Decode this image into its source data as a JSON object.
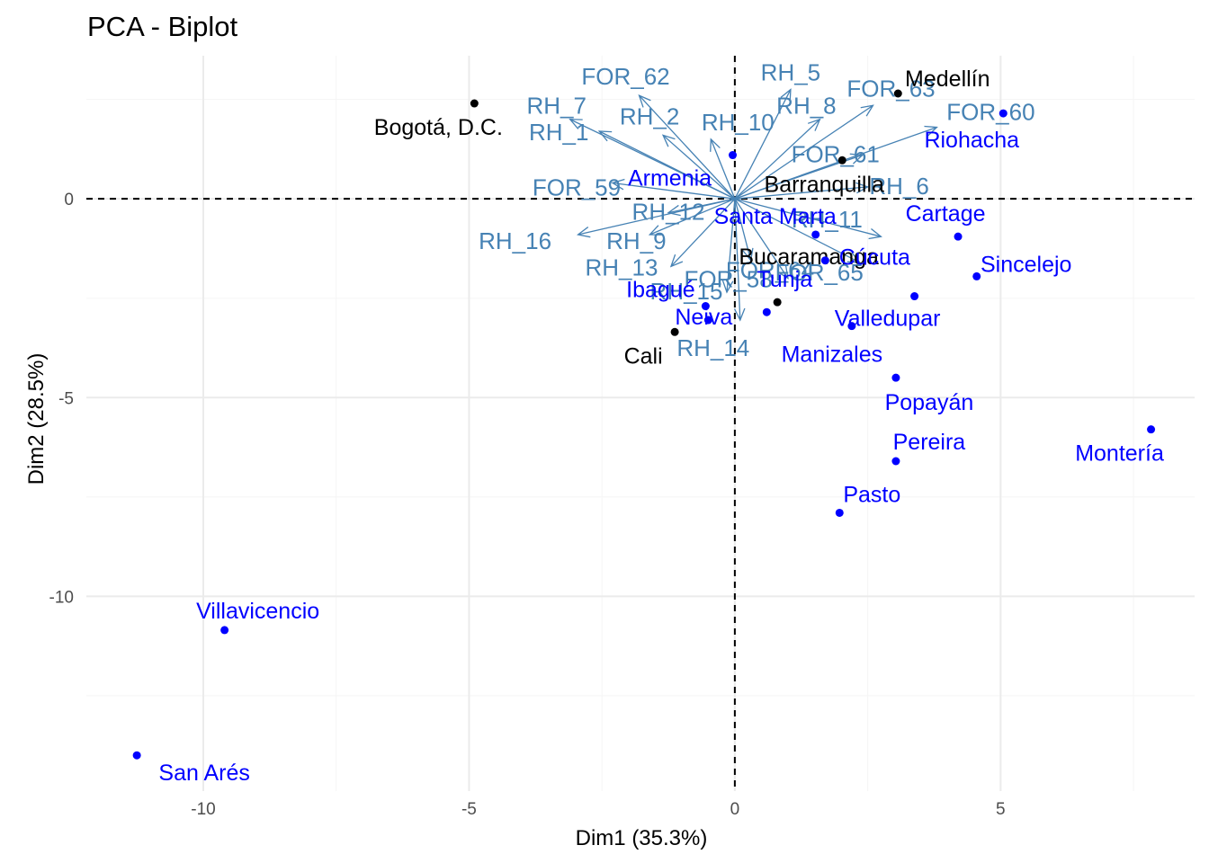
{
  "chart_data": {
    "type": "scatter",
    "title": "PCA - Biplot",
    "xlabel": "Dim1 (35.3%)",
    "ylabel": "Dim2 (28.5%)",
    "xlim": [
      -12.2,
      8.65
    ],
    "ylim": [
      -14.9,
      3.6
    ],
    "x_ticks": [
      -10,
      -5,
      0,
      5
    ],
    "x_tick_labels": [
      "-10",
      "-5",
      "0",
      "5"
    ],
    "y_ticks": [
      -10,
      -5,
      0
    ],
    "y_tick_labels": [
      "-10",
      "-5",
      "0"
    ],
    "grid": true,
    "zero_lines": true,
    "colors": {
      "variables": "#4682b4",
      "individuals_highlight": "#0000ff",
      "individuals_default": "#000000"
    },
    "individuals": [
      {
        "label": "Bogotá, D.C.",
        "x": -4.9,
        "y": 2.4,
        "color": "#000000"
      },
      {
        "label": "Medellín",
        "x": 3.07,
        "y": 2.65,
        "color": "#000000"
      },
      {
        "label": "Barranquilla",
        "x": 2.02,
        "y": 0.97,
        "color": "#000000"
      },
      {
        "label": "Bucaramanga",
        "x": 0.8,
        "y": -2.6,
        "color": "#000000"
      },
      {
        "label": "Cali",
        "x": -1.13,
        "y": -3.35,
        "color": "#000000"
      },
      {
        "label": "Riohacha",
        "x": 5.05,
        "y": 2.15,
        "color": "#0000ff"
      },
      {
        "label": "Armenia",
        "x": -0.04,
        "y": 1.1,
        "color": "#0000ff"
      },
      {
        "label": "Santa Marta",
        "x": 1.52,
        "y": -0.9,
        "color": "#0000ff"
      },
      {
        "label": "Cartage",
        "x": 4.2,
        "y": -0.95,
        "color": "#0000ff"
      },
      {
        "label": "Cúcuta",
        "x": 1.7,
        "y": -1.55,
        "color": "#0000ff"
      },
      {
        "label": "Sincelejo",
        "x": 4.55,
        "y": -1.95,
        "color": "#0000ff"
      },
      {
        "label": "Tunja",
        "x": 0.6,
        "y": -2.85,
        "color": "#0000ff"
      },
      {
        "label": "Ibagué",
        "x": -0.55,
        "y": -2.7,
        "color": "#0000ff"
      },
      {
        "label": "Valledupar",
        "x": 3.38,
        "y": -2.45,
        "color": "#0000ff"
      },
      {
        "label": "Neiva",
        "x": -0.5,
        "y": -3.05,
        "color": "#0000ff"
      },
      {
        "label": "Manizales",
        "x": 2.2,
        "y": -3.2,
        "color": "#0000ff"
      },
      {
        "label": "Popayán",
        "x": 3.03,
        "y": -4.5,
        "color": "#0000ff"
      },
      {
        "label": "Pereira",
        "x": 3.03,
        "y": -6.6,
        "color": "#0000ff"
      },
      {
        "label": "Montería",
        "x": 7.83,
        "y": -5.8,
        "color": "#0000ff"
      },
      {
        "label": "Pasto",
        "x": 1.97,
        "y": -7.9,
        "color": "#0000ff"
      },
      {
        "label": "Villavicencio",
        "x": -9.6,
        "y": -10.85,
        "color": "#0000ff"
      },
      {
        "label": "San Arés",
        "x": -11.25,
        "y": -14.0,
        "color": "#0000ff"
      }
    ],
    "variables": [
      {
        "label": "RH_5",
        "x": 1.05,
        "y": 2.75
      },
      {
        "label": "FOR_63",
        "x": 2.6,
        "y": 2.35
      },
      {
        "label": "FOR_62",
        "x": -1.8,
        "y": 2.6
      },
      {
        "label": "RH_7",
        "x": -3.1,
        "y": 2.0
      },
      {
        "label": "RH_10",
        "x": -0.45,
        "y": 1.5
      },
      {
        "label": "FOR_60",
        "x": 3.8,
        "y": 1.8
      },
      {
        "label": "RH_8",
        "x": 1.6,
        "y": 2.0
      },
      {
        "label": "RH_1",
        "x": -2.55,
        "y": 1.7
      },
      {
        "label": "RH_2",
        "x": -1.35,
        "y": 1.6
      },
      {
        "label": "FOR_61",
        "x": 2.4,
        "y": 1.1
      },
      {
        "label": "RH_6",
        "x": 2.5,
        "y": 0.3
      },
      {
        "label": "FOR_59",
        "x": -2.3,
        "y": 0.4
      },
      {
        "label": "RH_12",
        "x": -1.25,
        "y": -0.35
      },
      {
        "label": "RH_11",
        "x": 2.75,
        "y": -0.95
      },
      {
        "label": "RH_16",
        "x": -2.95,
        "y": -0.9
      },
      {
        "label": "RH_9",
        "x": -1.6,
        "y": -0.9
      },
      {
        "label": "FOR_58",
        "x": 0.3,
        "y": -1.55
      },
      {
        "label": "FOR_65",
        "x": 2.35,
        "y": -1.6
      },
      {
        "label": "RH_13",
        "x": -1.2,
        "y": -1.7
      },
      {
        "label": "FOR_64",
        "x": 1.0,
        "y": -2.0
      },
      {
        "label": "RH_15",
        "x": -0.15,
        "y": -2.35
      },
      {
        "label": "RH_14",
        "x": 0.1,
        "y": -3.05
      }
    ]
  }
}
